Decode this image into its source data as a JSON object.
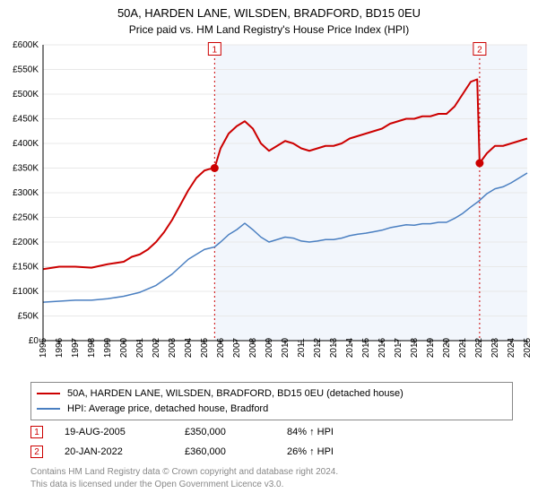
{
  "title_line1": "50A, HARDEN LANE, WILSDEN, BRADFORD, BD15 0EU",
  "title_line2": "Price paid vs. HM Land Registry's House Price Index (HPI)",
  "chart": {
    "background_color": "#ffffff",
    "plot_bg_left": "#ffffff",
    "plot_bg_right": "#f2f6fc",
    "axis_color": "#000000",
    "grid_color": "#e8e8e8",
    "ylabel_prefix": "£",
    "ylim": [
      0,
      600000
    ],
    "ytick_step": 50000,
    "yticks": [
      "£0",
      "£50K",
      "£100K",
      "£150K",
      "£200K",
      "£250K",
      "£300K",
      "£350K",
      "£400K",
      "£450K",
      "£500K",
      "£550K",
      "£600K"
    ],
    "x_years": [
      1995,
      1996,
      1997,
      1998,
      1999,
      2000,
      2001,
      2002,
      2003,
      2004,
      2005,
      2006,
      2007,
      2008,
      2009,
      2010,
      2011,
      2012,
      2013,
      2014,
      2015,
      2016,
      2017,
      2018,
      2019,
      2020,
      2021,
      2022,
      2023,
      2024,
      2025
    ],
    "x_min": 1995,
    "x_max": 2025,
    "series_house": {
      "label": "50A, HARDEN LANE, WILSDEN, BRADFORD, BD15 0EU (detached house)",
      "color": "#cc0000",
      "line_width": 2,
      "points": [
        [
          1995.0,
          145000
        ],
        [
          1996.0,
          150000
        ],
        [
          1997.0,
          150000
        ],
        [
          1998.0,
          148000
        ],
        [
          1999.0,
          155000
        ],
        [
          2000.0,
          160000
        ],
        [
          2000.5,
          170000
        ],
        [
          2001.0,
          175000
        ],
        [
          2001.5,
          185000
        ],
        [
          2002.0,
          200000
        ],
        [
          2002.5,
          220000
        ],
        [
          2003.0,
          245000
        ],
        [
          2003.5,
          275000
        ],
        [
          2004.0,
          305000
        ],
        [
          2004.5,
          330000
        ],
        [
          2005.0,
          345000
        ],
        [
          2005.3,
          348000
        ],
        [
          2005.63,
          350000
        ],
        [
          2006.0,
          390000
        ],
        [
          2006.5,
          420000
        ],
        [
          2007.0,
          435000
        ],
        [
          2007.5,
          445000
        ],
        [
          2008.0,
          430000
        ],
        [
          2008.5,
          400000
        ],
        [
          2009.0,
          385000
        ],
        [
          2009.5,
          395000
        ],
        [
          2010.0,
          405000
        ],
        [
          2010.5,
          400000
        ],
        [
          2011.0,
          390000
        ],
        [
          2011.5,
          385000
        ],
        [
          2012.0,
          390000
        ],
        [
          2012.5,
          395000
        ],
        [
          2013.0,
          395000
        ],
        [
          2013.5,
          400000
        ],
        [
          2014.0,
          410000
        ],
        [
          2014.5,
          415000
        ],
        [
          2015.0,
          420000
        ],
        [
          2015.5,
          425000
        ],
        [
          2016.0,
          430000
        ],
        [
          2016.5,
          440000
        ],
        [
          2017.0,
          445000
        ],
        [
          2017.5,
          450000
        ],
        [
          2018.0,
          450000
        ],
        [
          2018.5,
          455000
        ],
        [
          2019.0,
          455000
        ],
        [
          2019.5,
          460000
        ],
        [
          2020.0,
          460000
        ],
        [
          2020.5,
          475000
        ],
        [
          2021.0,
          500000
        ],
        [
          2021.5,
          525000
        ],
        [
          2021.9,
          530000
        ],
        [
          2022.05,
          360000
        ],
        [
          2022.5,
          380000
        ],
        [
          2023.0,
          395000
        ],
        [
          2023.5,
          395000
        ],
        [
          2024.0,
          400000
        ],
        [
          2024.5,
          405000
        ],
        [
          2025.0,
          410000
        ]
      ]
    },
    "series_hpi": {
      "label": "HPI: Average price, detached house, Bradford",
      "color": "#4a7fc1",
      "line_width": 1.5,
      "points": [
        [
          1995.0,
          78000
        ],
        [
          1996.0,
          80000
        ],
        [
          1997.0,
          82000
        ],
        [
          1998.0,
          82000
        ],
        [
          1999.0,
          85000
        ],
        [
          2000.0,
          90000
        ],
        [
          2001.0,
          98000
        ],
        [
          2002.0,
          112000
        ],
        [
          2003.0,
          135000
        ],
        [
          2004.0,
          165000
        ],
        [
          2005.0,
          185000
        ],
        [
          2005.63,
          190000
        ],
        [
          2006.0,
          200000
        ],
        [
          2006.5,
          215000
        ],
        [
          2007.0,
          225000
        ],
        [
          2007.5,
          238000
        ],
        [
          2008.0,
          225000
        ],
        [
          2008.5,
          210000
        ],
        [
          2009.0,
          200000
        ],
        [
          2009.5,
          205000
        ],
        [
          2010.0,
          210000
        ],
        [
          2010.5,
          208000
        ],
        [
          2011.0,
          202000
        ],
        [
          2011.5,
          200000
        ],
        [
          2012.0,
          202000
        ],
        [
          2012.5,
          205000
        ],
        [
          2013.0,
          205000
        ],
        [
          2013.5,
          208000
        ],
        [
          2014.0,
          213000
        ],
        [
          2014.5,
          216000
        ],
        [
          2015.0,
          218000
        ],
        [
          2015.5,
          221000
        ],
        [
          2016.0,
          224000
        ],
        [
          2016.5,
          229000
        ],
        [
          2017.0,
          232000
        ],
        [
          2017.5,
          235000
        ],
        [
          2018.0,
          234000
        ],
        [
          2018.5,
          237000
        ],
        [
          2019.0,
          237000
        ],
        [
          2019.5,
          240000
        ],
        [
          2020.0,
          240000
        ],
        [
          2020.5,
          248000
        ],
        [
          2021.0,
          258000
        ],
        [
          2021.5,
          271000
        ],
        [
          2022.0,
          283000
        ],
        [
          2022.5,
          298000
        ],
        [
          2023.0,
          308000
        ],
        [
          2023.5,
          312000
        ],
        [
          2024.0,
          320000
        ],
        [
          2024.5,
          330000
        ],
        [
          2025.0,
          340000
        ]
      ]
    },
    "events": [
      {
        "num": "1",
        "x": 2005.63,
        "dot_y_house": 350000,
        "marker_y": 590000,
        "date": "19-AUG-2005",
        "price": "£350,000",
        "hpi_delta": "84% ↑ HPI",
        "marker_color": "#cc0000",
        "dash_color": "#cc0000"
      },
      {
        "num": "2",
        "x": 2022.05,
        "dot_y_house": 360000,
        "marker_y": 590000,
        "date": "20-JAN-2022",
        "price": "£360,000",
        "hpi_delta": "26% ↑ HPI",
        "marker_color": "#cc0000",
        "dash_color": "#cc0000"
      }
    ],
    "event_dot_radius": 4.5
  },
  "footer_line1": "Contains HM Land Registry data © Crown copyright and database right 2024.",
  "footer_line2": "This data is licensed under the Open Government Licence v3.0."
}
